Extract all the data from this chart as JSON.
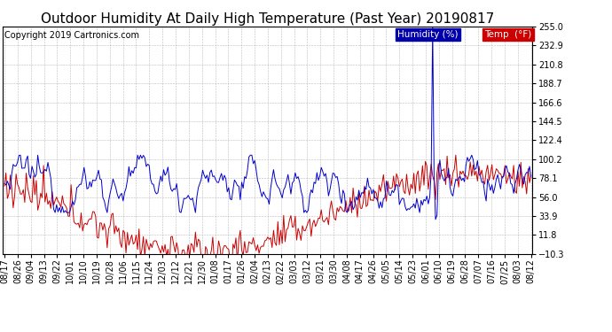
{
  "title": "Outdoor Humidity At Daily High Temperature (Past Year) 20190817",
  "copyright": "Copyright 2019 Cartronics.com",
  "legend_humidity_label": "Humidity (%)",
  "legend_temp_label": "Temp  (°F)",
  "humidity_color": "#0000cc",
  "temp_color": "#cc0000",
  "legend_humidity_bg": "#0000bb",
  "legend_temp_bg": "#cc0000",
  "bg_color": "#ffffff",
  "grid_color": "#aaaaaa",
  "ymin": -10.3,
  "ymax": 255.0,
  "yticks": [
    255.0,
    232.9,
    210.8,
    188.7,
    166.6,
    144.5,
    122.4,
    100.2,
    78.1,
    56.0,
    33.9,
    11.8,
    -10.3
  ],
  "title_fontsize": 11,
  "copyright_fontsize": 7,
  "tick_fontsize": 7,
  "legend_fontsize": 7.5,
  "x_dates": [
    "08/17",
    "08/26",
    "09/04",
    "09/13",
    "09/22",
    "10/01",
    "10/10",
    "10/19",
    "10/28",
    "11/06",
    "11/15",
    "11/24",
    "12/03",
    "12/12",
    "12/21",
    "12/30",
    "01/08",
    "01/17",
    "01/26",
    "02/04",
    "02/13",
    "02/22",
    "03/03",
    "03/12",
    "03/21",
    "03/30",
    "04/08",
    "04/17",
    "04/26",
    "05/05",
    "05/14",
    "05/23",
    "06/01",
    "06/10",
    "06/19",
    "06/28",
    "07/07",
    "07/16",
    "07/25",
    "08/03",
    "08/12"
  ],
  "n_points": 365,
  "spike_index": 296,
  "spike_value": 254.0,
  "humidity_mean": 72,
  "humidity_std": 12,
  "humidity_min": 38,
  "humidity_max": 105,
  "temp_summer_high": 85,
  "temp_winter_low": -8,
  "temp_noise": 10
}
